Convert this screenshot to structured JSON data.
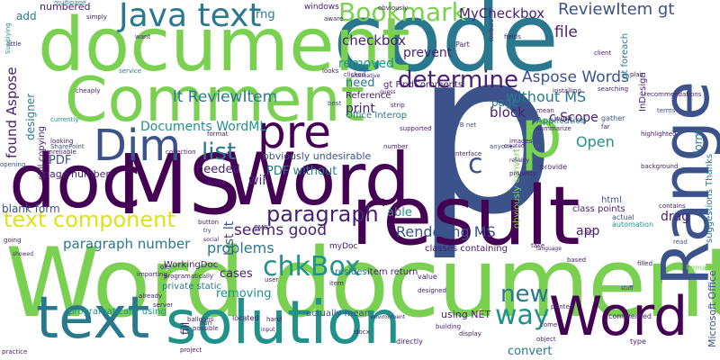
{
  "colors": {
    "background": "#ffffff",
    "green": "#7ad151",
    "yellow": "#dde318",
    "teal": "#21918c",
    "blue": "#3b528b",
    "purple": "#440154",
    "dark_purple": "#482173",
    "sea": "#2a788e",
    "mint": "#22a884",
    "lime": "#addc30"
  },
  "words": [
    {
      "id": "w-word-document",
      "text": "Word document"
    },
    {
      "id": "w-p-big",
      "text": "p"
    },
    {
      "id": "w-code",
      "text": "code"
    },
    {
      "id": "w-document",
      "text": "document"
    },
    {
      "id": "w-comment",
      "text": "Comment"
    },
    {
      "id": "w-result",
      "text": "result"
    },
    {
      "id": "w-ms",
      "text": "MS"
    },
    {
      "id": "w-word-mid",
      "text": "Word"
    },
    {
      "id": "w-doc",
      "text": "doc"
    },
    {
      "id": "w-range",
      "text": "Range"
    },
    {
      "id": "w-solution",
      "text": "solution"
    },
    {
      "id": "w-text-big",
      "text": "text"
    },
    {
      "id": "w-dim",
      "text": "Dim"
    },
    {
      "id": "w-pre",
      "text": "pre"
    },
    {
      "id": "w-java-text",
      "text": "Java text"
    },
    {
      "id": "w-bookmark",
      "text": "Bookmark"
    },
    {
      "id": "w-word-right",
      "text": "Word"
    },
    {
      "id": "w-p-small",
      "text": "p"
    },
    {
      "id": "w-determine",
      "text": "determine"
    },
    {
      "id": "w-text-component",
      "text": "text component"
    },
    {
      "id": "w-paragraph",
      "text": "paragraph"
    },
    {
      "id": "w-chkbox",
      "text": "chkBox"
    },
    {
      "id": "w-new",
      "text": "new"
    },
    {
      "id": "w-way",
      "text": "way"
    },
    {
      "id": "w-list",
      "text": "list"
    },
    {
      "id": "w-c",
      "text": "c"
    },
    {
      "id": "w-aspose-words",
      "text": "Aspose Words"
    },
    {
      "id": "w-reviewitem-gt",
      "text": "ReviewItem gt"
    },
    {
      "id": "w-mycheckbox",
      "text": "MyCheckbox"
    },
    {
      "id": "w-lt-reviewitem",
      "text": "lt ReviewItem"
    },
    {
      "id": "w-documents-wordml",
      "text": "Documents WordML"
    },
    {
      "id": "w-rendering-ms",
      "text": "Rendering MS"
    },
    {
      "id": "w-paragraph-number",
      "text": "paragraph number"
    },
    {
      "id": "w-seems-good",
      "text": "seems good"
    },
    {
      "id": "w-problems",
      "text": "problems"
    },
    {
      "id": "w-pdf-without",
      "text": "PDF without"
    },
    {
      "id": "w-without-ms",
      "text": "without MS"
    },
    {
      "id": "w-checkbox",
      "text": "checkbox"
    },
    {
      "id": "w-removed",
      "text": "removed"
    },
    {
      "id": "w-prevent",
      "text": "prevent"
    },
    {
      "id": "w-file",
      "text": "file"
    },
    {
      "id": "w-need",
      "text": "need"
    },
    {
      "id": "w-print",
      "text": "print"
    },
    {
      "id": "w-will",
      "text": "will"
    },
    {
      "id": "w-block",
      "text": "block"
    },
    {
      "id": "w-page-mid",
      "text": "page"
    },
    {
      "id": "w-open",
      "text": "Open"
    },
    {
      "id": "w-app",
      "text": "app"
    },
    {
      "id": "w-drag",
      "text": "drag"
    },
    {
      "id": "w-able",
      "text": "able"
    },
    {
      "id": "w-needed",
      "text": "needed"
    },
    {
      "id": "w-pdf",
      "text": "PDF"
    },
    {
      "id": "w-cases",
      "text": "cases"
    },
    {
      "id": "w-removing",
      "text": "removing"
    },
    {
      "id": "w-blank-form",
      "text": "blank form"
    },
    {
      "id": "w-rng",
      "text": "rng"
    },
    {
      "id": "w-add",
      "text": "add"
    },
    {
      "id": "w-numbered",
      "text": "numbered"
    },
    {
      "id": "w-obviously-undesirable",
      "text": "obviously undesirable"
    },
    {
      "id": "w-c-scope",
      "text": "c Scope"
    },
    {
      "id": "w-page-number",
      "text": "page number"
    },
    {
      "id": "w-found-aspose",
      "text": "found Aspose"
    },
    {
      "id": "w-designer",
      "text": "designer"
    },
    {
      "id": "w-list-lt",
      "text": "List lt"
    },
    {
      "id": "w-form",
      "text": "form"
    },
    {
      "id": "w-using-net",
      "text": "using NET"
    },
    {
      "id": "w-convert",
      "text": "convert"
    },
    {
      "id": "w-fill",
      "text": "fill"
    },
    {
      "id": "w-microsoft-office",
      "text": "Microsoft Office"
    },
    {
      "id": "w-office-interop",
      "text": "Office Interop"
    },
    {
      "id": "w-reference",
      "text": "Reference"
    },
    {
      "id": "w-programatically-using",
      "text": "programatically using"
    },
    {
      "id": "w-private-static",
      "text": "private static"
    },
    {
      "id": "w-actually-mean",
      "text": "actually mean"
    },
    {
      "id": "w-item-return",
      "text": "item return"
    },
    {
      "id": "w-resides",
      "text": "resides"
    },
    {
      "id": "w-workingdoc",
      "text": "WorkingDoc"
    },
    {
      "id": "w-mydoc",
      "text": "myDoc"
    },
    {
      "id": "w-classes-containing",
      "text": "classes containing"
    },
    {
      "id": "w-class-points",
      "text": "class points"
    },
    {
      "id": "w-html",
      "text": "html"
    },
    {
      "id": "w-gt-foreach",
      "text": "gt foreach"
    },
    {
      "id": "w-gt-findcomments",
      "text": "gt FindComments"
    },
    {
      "id": "w-application",
      "text": "Application"
    },
    {
      "id": "w-indesign",
      "text": "InDesign"
    },
    {
      "id": "w-obviously-convert",
      "text": "obviously convert"
    },
    {
      "id": "w-suggestions-thanks",
      "text": "suggestions Thanks"
    },
    {
      "id": "w-windows",
      "text": "windows"
    },
    {
      "id": "w-still-copying",
      "text": "still copying"
    },
    {
      "id": "w-multipage",
      "text": "multipage"
    },
    {
      "id": "w-supplying",
      "text": "Supplying"
    },
    {
      "id": "w-little",
      "text": "little"
    },
    {
      "id": "w-simply",
      "text": "simply"
    },
    {
      "id": "w-currently",
      "text": "currently"
    },
    {
      "id": "w-looking",
      "text": "looking"
    },
    {
      "id": "w-sharepoint",
      "text": "SharePoint"
    },
    {
      "id": "w-unreliable",
      "text": "unreliable"
    },
    {
      "id": "w-opening",
      "text": "opening"
    },
    {
      "id": "w-service",
      "text": "service"
    },
    {
      "id": "w-cheaply",
      "text": "cheaply"
    },
    {
      "id": "w-looks",
      "text": "looks"
    },
    {
      "id": "w-clicked",
      "text": "clicked"
    },
    {
      "id": "w-best",
      "text": "best"
    },
    {
      "id": "w-strip",
      "text": "strip"
    },
    {
      "id": "w-part",
      "text": "Part"
    },
    {
      "id": "w-vb-net",
      "text": "VB net"
    },
    {
      "id": "w-fields",
      "text": "fields"
    },
    {
      "id": "w-client",
      "text": "client"
    },
    {
      "id": "w-installing",
      "text": "installing"
    },
    {
      "id": "w-searching",
      "text": "searching"
    },
    {
      "id": "w-plain",
      "text": "plain"
    },
    {
      "id": "w-recommendations",
      "text": "recommendations"
    },
    {
      "id": "w-terms",
      "text": "terms"
    },
    {
      "id": "w-highlighted",
      "text": "highlighted"
    },
    {
      "id": "w-mean",
      "text": "mean"
    },
    {
      "id": "w-work",
      "text": "work"
    },
    {
      "id": "w-gather",
      "text": "gather"
    },
    {
      "id": "w-far",
      "text": "far"
    },
    {
      "id": "w-summarize",
      "text": "summarize"
    },
    {
      "id": "w-anyone",
      "text": "anyone"
    },
    {
      "id": "w-images",
      "text": "images"
    },
    {
      "id": "w-provide",
      "text": "provide"
    },
    {
      "id": "w-property",
      "text": "property"
    },
    {
      "id": "w-background",
      "text": "background"
    },
    {
      "id": "w-actual",
      "text": "actual"
    },
    {
      "id": "w-automation",
      "text": "automation"
    },
    {
      "id": "w-contains",
      "text": "contains"
    },
    {
      "id": "w-read",
      "text": "read"
    },
    {
      "id": "w-filled",
      "text": "filled"
    },
    {
      "id": "w-remark",
      "text": "Remark"
    },
    {
      "id": "w-based",
      "text": "based"
    },
    {
      "id": "w-take",
      "text": "take"
    },
    {
      "id": "w-pc",
      "text": "PC"
    },
    {
      "id": "w-button",
      "text": "button"
    },
    {
      "id": "w-balloons",
      "text": "balloons"
    },
    {
      "id": "w-possible",
      "text": "possible"
    },
    {
      "id": "w-ole",
      "text": "ole"
    },
    {
      "id": "w-going",
      "text": "going"
    },
    {
      "id": "w-showed",
      "text": "showed"
    },
    {
      "id": "w-importing",
      "text": "importing"
    },
    {
      "id": "w-already",
      "text": "already"
    },
    {
      "id": "w-server",
      "text": "server"
    },
    {
      "id": "w-practice",
      "text": "practice"
    },
    {
      "id": "w-non",
      "text": "non"
    },
    {
      "id": "w-project",
      "text": "project"
    },
    {
      "id": "w-located",
      "text": "located"
    },
    {
      "id": "w-hand",
      "text": "hand"
    },
    {
      "id": "w-docx",
      "text": "docx"
    },
    {
      "id": "w-directly",
      "text": "directly"
    },
    {
      "id": "w-building",
      "text": "building"
    },
    {
      "id": "w-display",
      "text": "display"
    },
    {
      "id": "w-value",
      "text": "value"
    },
    {
      "id": "w-designed",
      "text": "designed"
    },
    {
      "id": "w-printed",
      "text": "printed"
    },
    {
      "id": "w-commented",
      "text": "commented"
    },
    {
      "id": "w-type",
      "text": "type"
    },
    {
      "id": "w-object",
      "text": "object"
    },
    {
      "id": "w-come",
      "text": "come"
    },
    {
      "id": "w-environment",
      "text": "environment"
    },
    {
      "id": "w-number",
      "text": "number"
    },
    {
      "id": "w-interface",
      "text": "interface"
    },
    {
      "id": "w-supported",
      "text": "supported"
    },
    {
      "id": "w-scope",
      "text": "Scope"
    },
    {
      "id": "w-format",
      "text": "format"
    },
    {
      "id": "w-collection",
      "text": "collection"
    },
    {
      "id": "w-cms",
      "text": "CMS"
    },
    {
      "id": "w-user",
      "text": "user"
    },
    {
      "id": "w-item",
      "text": "item"
    },
    {
      "id": "w-alternative",
      "text": "alternative"
    },
    {
      "id": "w-want",
      "text": "want"
    },
    {
      "id": "w-programatically",
      "text": "programatically"
    },
    {
      "id": "w-aware",
      "text": "aware"
    },
    {
      "id": "w-obviously",
      "text": "obviously"
    },
    {
      "id": "w-created",
      "text": "created"
    },
    {
      "id": "w-reliably",
      "text": "reliably"
    },
    {
      "id": "w-language",
      "text": "language"
    },
    {
      "id": "w-input",
      "text": "input"
    },
    {
      "id": "w-try",
      "text": "try"
    },
    {
      "id": "w-social",
      "text": "social"
    },
    {
      "id": "w-stuff",
      "text": "stuff"
    },
    {
      "id": "w-guess",
      "text": "guess"
    },
    {
      "id": "w-toolbars",
      "text": "toolbars"
    }
  ]
}
